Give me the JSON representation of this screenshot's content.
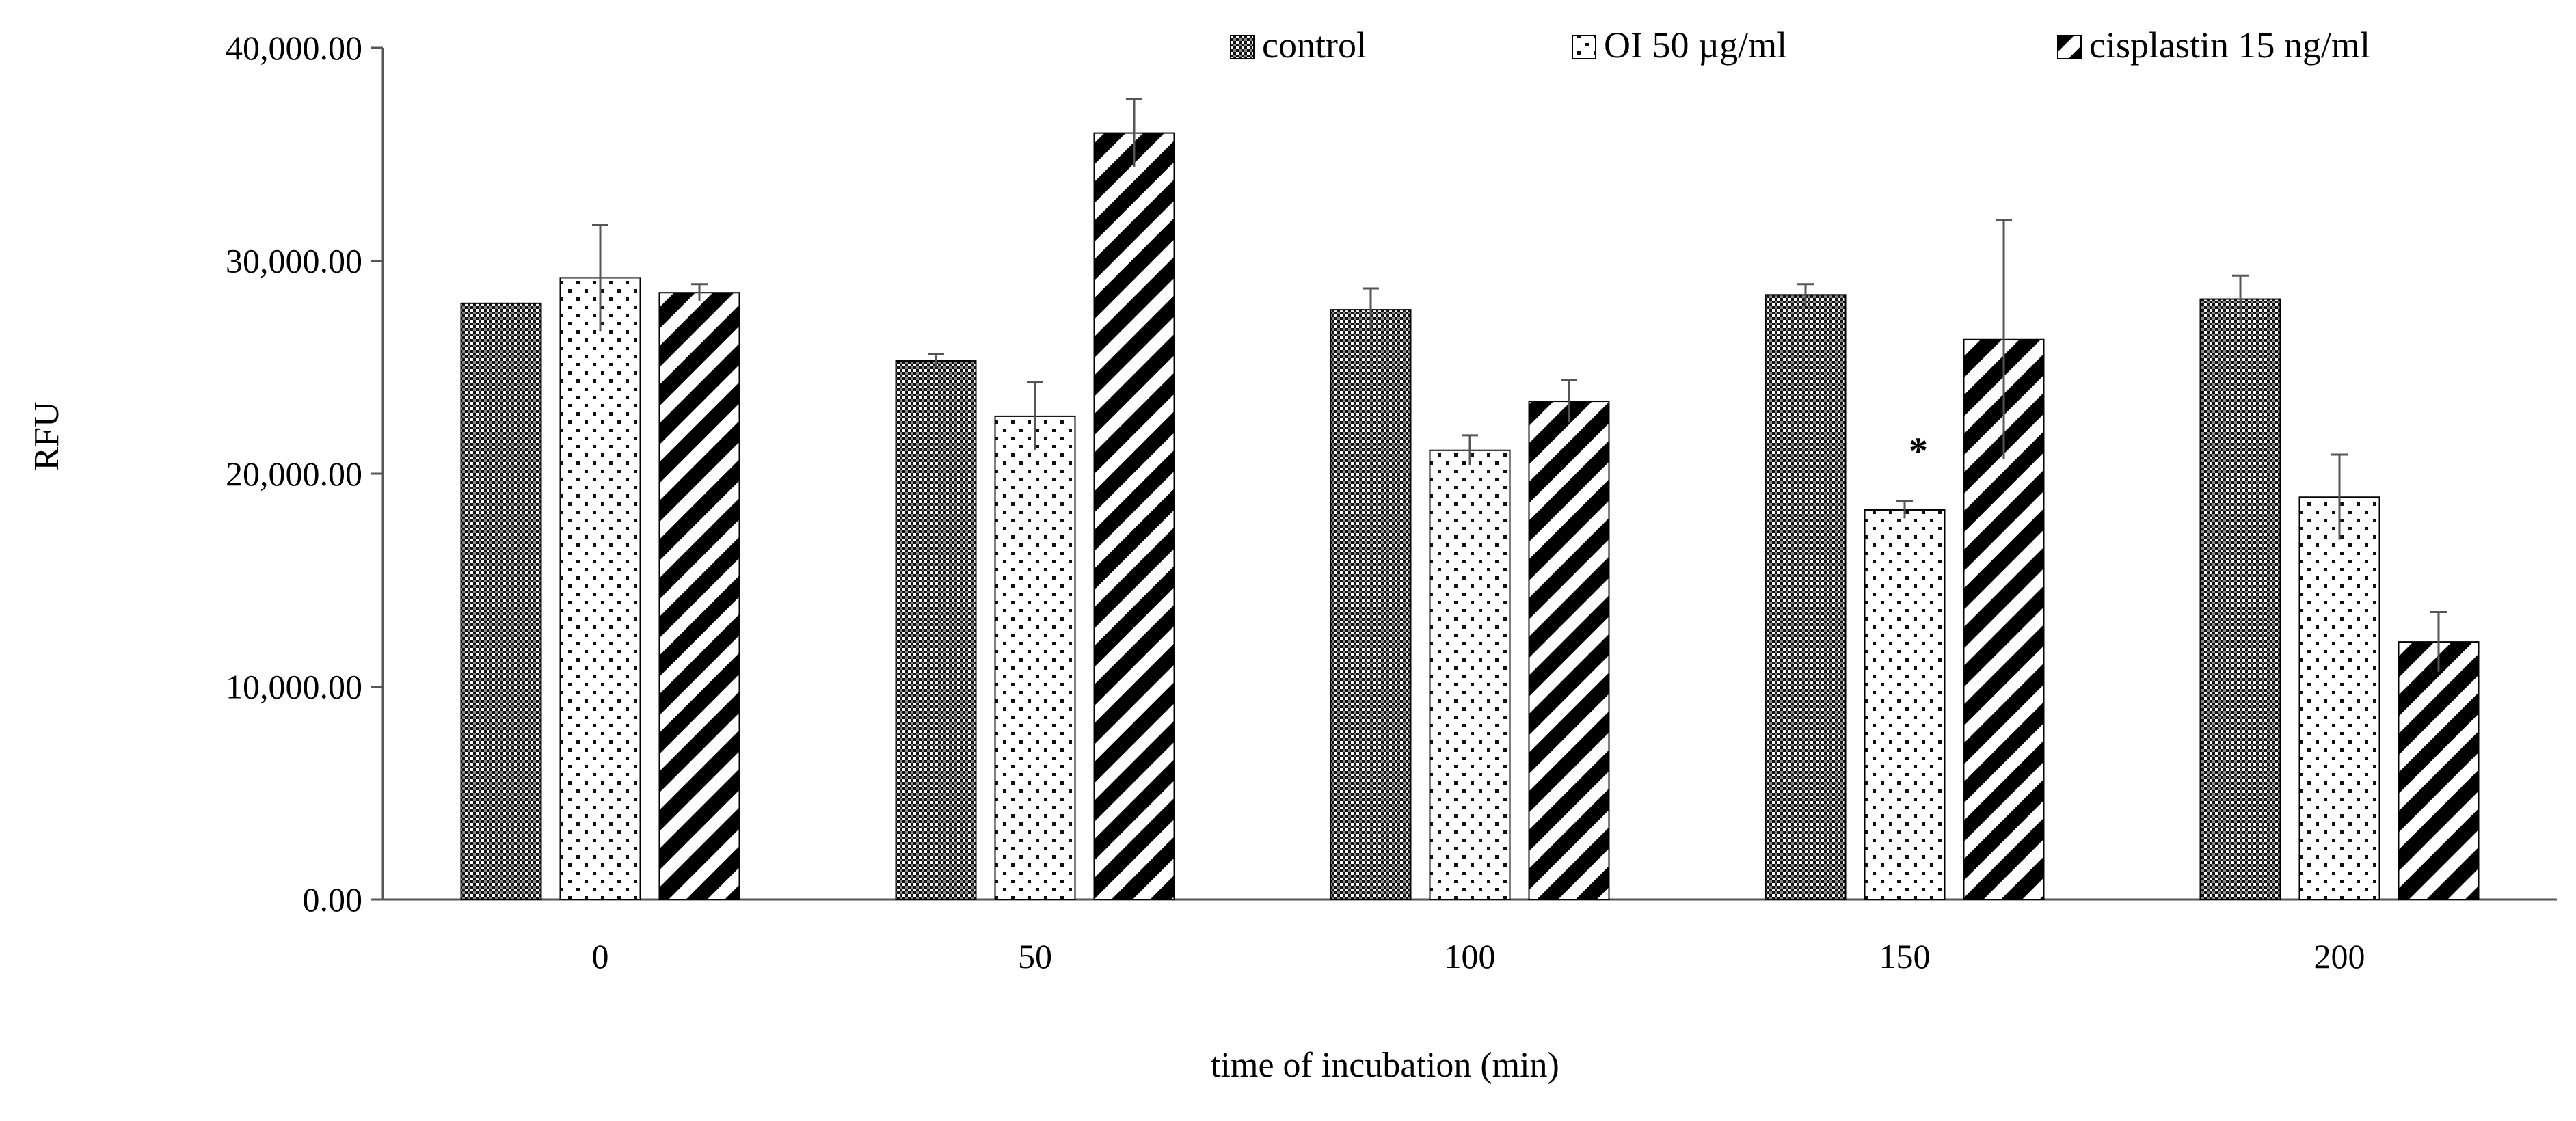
{
  "chart_data": {
    "type": "bar",
    "title": "",
    "xlabel": "time of incubation (min)",
    "ylabel": "RFU",
    "categories": [
      "0",
      "50",
      "100",
      "150",
      "200"
    ],
    "ylim": [
      0,
      40000
    ],
    "yticks": [
      0,
      10000,
      20000,
      30000,
      40000
    ],
    "ytick_labels": [
      "0.00",
      "10,000.00",
      "20,000.00",
      "30,000.00",
      "40,000.00"
    ],
    "grid": false,
    "legend_position": "top-right",
    "series": [
      {
        "name": "control",
        "pattern": "crosshatch",
        "values": [
          28000,
          25300,
          27700,
          28400,
          28200
        ],
        "errors": [
          0,
          300,
          1000,
          500,
          1100
        ]
      },
      {
        "name": "OI  50 µg/ml",
        "pattern": "dots",
        "values": [
          29200,
          22700,
          21100,
          18300,
          18900
        ],
        "errors": [
          2500,
          1600,
          700,
          400,
          2000
        ]
      },
      {
        "name": "cisplastin 15 ng/ml",
        "pattern": "diagonal",
        "values": [
          28500,
          36000,
          23400,
          26300,
          12100
        ],
        "errors": [
          400,
          1600,
          1000,
          5600,
          1400
        ]
      }
    ],
    "annotations": [
      {
        "text": "*",
        "category": "150",
        "series": "OI  50 µg/ml"
      }
    ]
  }
}
